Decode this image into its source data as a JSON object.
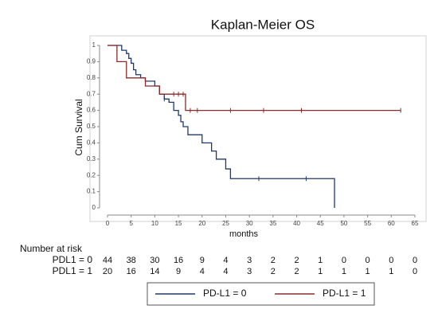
{
  "chart_data": {
    "type": "kaplan-meier",
    "title": "Kaplan-Meier OS",
    "xlabel": "months",
    "ylabel": "Cum Survival",
    "xlim": [
      0,
      65
    ],
    "ylim": [
      0,
      1
    ],
    "xticks": [
      0,
      5,
      10,
      15,
      20,
      25,
      30,
      35,
      40,
      45,
      50,
      55,
      60,
      65
    ],
    "yticks": [
      0,
      0.1,
      0.2,
      0.3,
      0.4,
      0.5,
      0.6,
      0.7,
      0.8,
      0.9,
      1
    ],
    "series": [
      {
        "name": "PD-L1 = 0",
        "color": "#1f3a68",
        "x": [
          0,
          3,
          4,
          4.5,
          5,
          5.5,
          6,
          7,
          8,
          10,
          11,
          12,
          13,
          14,
          15,
          15.5,
          16,
          17,
          20,
          22,
          23,
          25,
          26,
          48
        ],
        "values": [
          1,
          0.97,
          0.95,
          0.92,
          0.89,
          0.85,
          0.82,
          0.8,
          0.78,
          0.75,
          0.7,
          0.67,
          0.65,
          0.6,
          0.57,
          0.53,
          0.5,
          0.45,
          0.4,
          0.35,
          0.3,
          0.24,
          0.18,
          0
        ],
        "censored": [
          12,
          32,
          42
        ]
      },
      {
        "name": "PD-L1 = 1",
        "color": "#8b2b2b",
        "x": [
          0,
          2,
          4,
          8,
          11,
          16.5,
          62
        ],
        "values": [
          1,
          0.9,
          0.8,
          0.75,
          0.7,
          0.6,
          0.6
        ],
        "censored": [
          14,
          15,
          16,
          17.5,
          19,
          26,
          33,
          41,
          62
        ]
      }
    ],
    "risk_table": {
      "title": "Number at risk",
      "rows": [
        {
          "label": "PDL1 = 0",
          "values": [
            44,
            38,
            30,
            16,
            9,
            4,
            3,
            2,
            2,
            1,
            0,
            0,
            0,
            0
          ]
        },
        {
          "label": "PDL1 = 1",
          "values": [
            20,
            16,
            14,
            9,
            4,
            4,
            3,
            2,
            2,
            1,
            1,
            1,
            1,
            0
          ]
        }
      ]
    }
  }
}
